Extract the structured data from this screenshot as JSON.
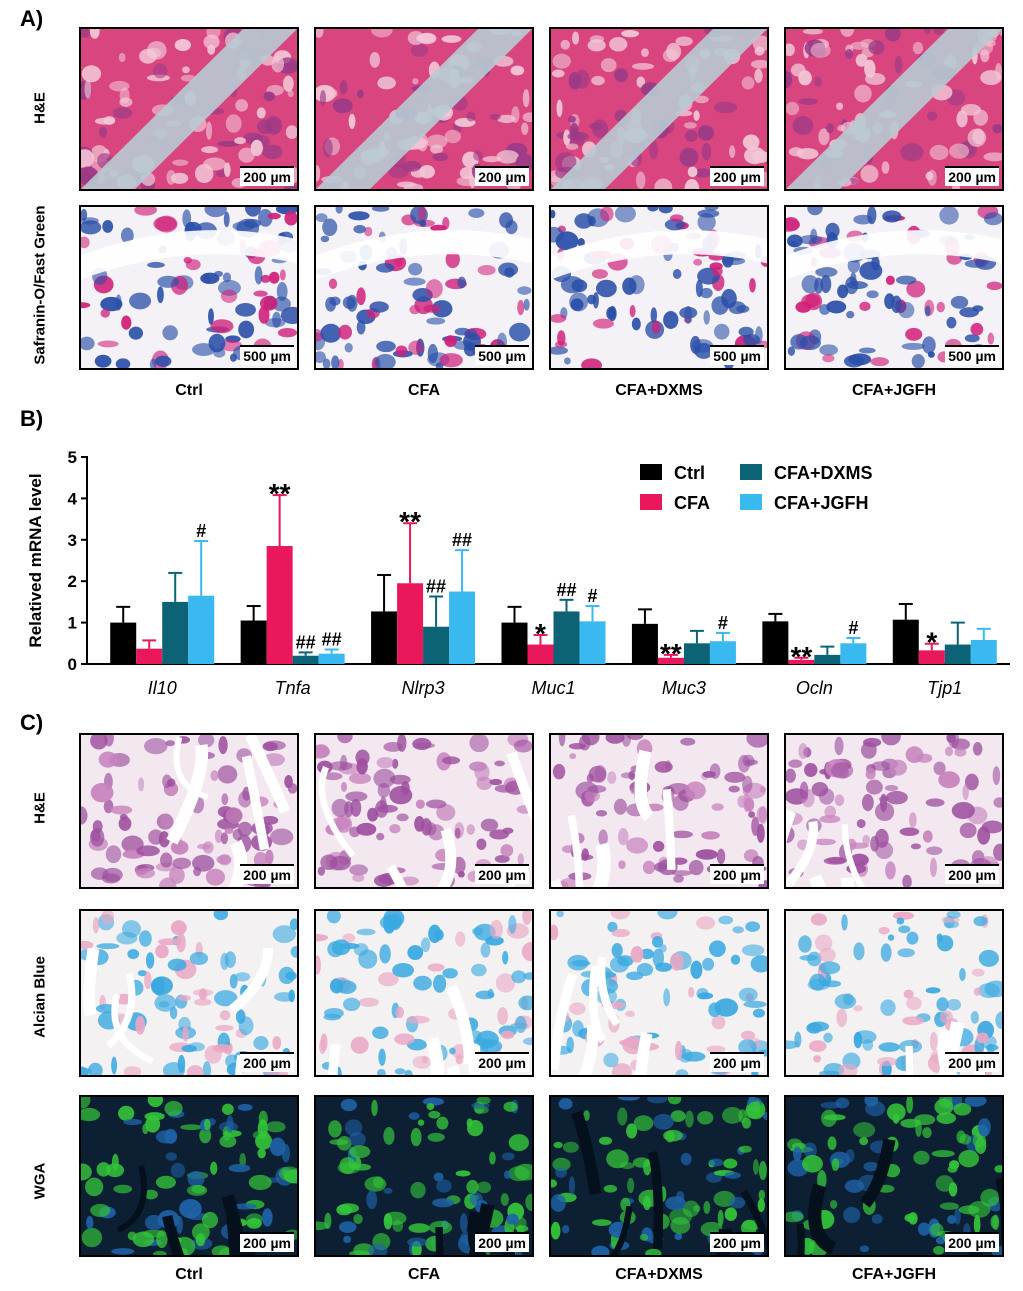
{
  "panel_a": {
    "letter": "A)",
    "row_labels": [
      "H&E",
      "Safranin-O/Fast Green"
    ],
    "scale_bars": [
      "200 µm",
      "500 µm"
    ],
    "col_labels": [
      "Ctrl",
      "CFA",
      "CFA+DXMS",
      "CFA+JGFH"
    ]
  },
  "panel_b": {
    "letter": "B)"
  },
  "panel_c": {
    "letter": "C)",
    "row_labels": [
      "H&E",
      "Alcian Blue",
      "WGA"
    ],
    "scale_bar": "200 µm",
    "col_labels": [
      "Ctrl",
      "CFA",
      "CFA+DXMS",
      "CFA+JGFH"
    ]
  },
  "colors": {
    "Ctrl": "#000000",
    "CFA": "#e8185a",
    "CFA+DXMS": "#0d6376",
    "CFA+JGFH": "#3ab8f0"
  },
  "chart_data": {
    "type": "bar",
    "categories": [
      "Il10",
      "Tnfa",
      "Nlrp3",
      "Muc1",
      "Muc3",
      "Ocln",
      "Tjp1"
    ],
    "ylabel": "Relatived mRNA level",
    "ylim": [
      0,
      5
    ],
    "yticks": [
      "0",
      "1",
      "2",
      "3",
      "4",
      "5"
    ],
    "legend_position": "top-right",
    "series": [
      {
        "name": "Ctrl",
        "values": [
          1.0,
          1.05,
          1.27,
          1.0,
          0.97,
          1.03,
          1.07
        ],
        "errors": [
          0.38,
          0.35,
          0.88,
          0.38,
          0.35,
          0.18,
          0.38
        ],
        "annotations": [
          "",
          "",
          "",
          "",
          "",
          "",
          ""
        ]
      },
      {
        "name": "CFA",
        "values": [
          0.37,
          2.85,
          1.95,
          0.47,
          0.15,
          0.1,
          0.33
        ],
        "errors": [
          0.2,
          1.23,
          1.45,
          0.23,
          0.07,
          0.05,
          0.16
        ],
        "annotations": [
          "",
          "**",
          "**",
          "*",
          "**",
          "**",
          "*"
        ]
      },
      {
        "name": "CFA+DXMS",
        "values": [
          1.5,
          0.2,
          0.9,
          1.27,
          0.5,
          0.22,
          0.47
        ],
        "errors": [
          0.7,
          0.08,
          0.73,
          0.28,
          0.3,
          0.2,
          0.53
        ],
        "annotations": [
          "",
          "##",
          "##",
          "##",
          "",
          "",
          ""
        ]
      },
      {
        "name": "CFA+JGFH",
        "values": [
          1.65,
          0.25,
          1.75,
          1.03,
          0.55,
          0.5,
          0.58
        ],
        "errors": [
          1.32,
          0.1,
          1.0,
          0.37,
          0.2,
          0.13,
          0.27
        ],
        "annotations": [
          "#",
          "##",
          "##",
          "#",
          "#",
          "#",
          ""
        ]
      }
    ]
  }
}
